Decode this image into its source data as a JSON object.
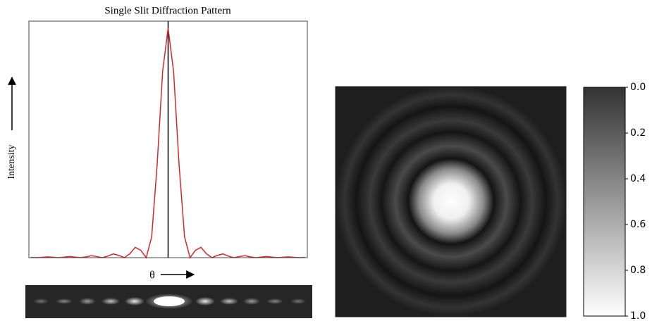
{
  "chart_data": [
    {
      "type": "line",
      "title": "Single Slit Diffraction Pattern",
      "y_label": "Intensity",
      "x_label": "θ",
      "x": [
        -6.25,
        -6,
        -5.75,
        -5.5,
        -5.25,
        -5,
        -4.75,
        -4.5,
        -4.25,
        -4,
        -3.75,
        -3.5,
        -3.25,
        -3,
        -2.75,
        -2.5,
        -2.25,
        -2,
        -1.75,
        -1.5,
        -1.25,
        -1,
        -0.75,
        -0.5,
        -0.25,
        0,
        0.25,
        0.5,
        0.75,
        1,
        1.25,
        1.5,
        1.75,
        2,
        2.25,
        2.5,
        2.75,
        3,
        3.25,
        3.5,
        3.75,
        4,
        4.25,
        4.5,
        4.75,
        5,
        5.25,
        5.5,
        5.75,
        6,
        6.25
      ],
      "values": [
        0.0013,
        0,
        0.0015,
        0.0033,
        0.0018,
        0,
        0.0022,
        0.005,
        0.0028,
        0,
        0.0036,
        0.0083,
        0.0048,
        0,
        0.0067,
        0.0162,
        0.01,
        0,
        0.0165,
        0.045,
        0.0324,
        0,
        0.0901,
        0.4053,
        0.8106,
        1,
        0.8106,
        0.4053,
        0.0901,
        0,
        0.0324,
        0.045,
        0.0165,
        0,
        0.01,
        0.0162,
        0.0067,
        0,
        0.0048,
        0.0083,
        0.0036,
        0,
        0.0028,
        0.005,
        0.0022,
        0,
        0.0018,
        0.0033,
        0.0015,
        0,
        0.0013
      ],
      "color": "#d62728",
      "xlim": [
        -6.35,
        6.35
      ],
      "ylim": [
        0,
        1.03
      ]
    },
    {
      "type": "heatmap",
      "colors": [
        "#333333",
        "#ffffff"
      ],
      "clim": [
        0,
        1
      ],
      "cticks": [
        {
          "value": 0,
          "label": "0.0"
        },
        0.2,
        0.4,
        0.6,
        0.8,
        {
          "value": 1,
          "label": "1.0"
        }
      ]
    }
  ]
}
